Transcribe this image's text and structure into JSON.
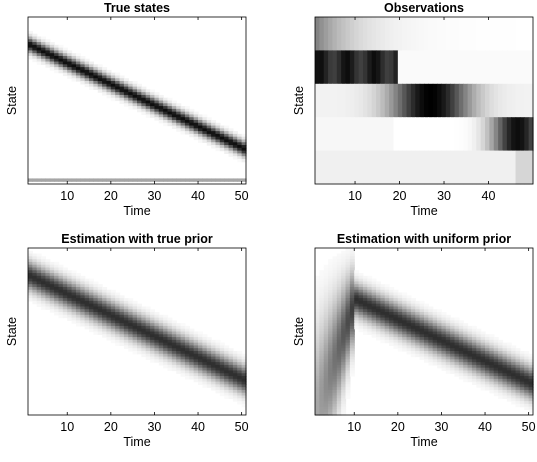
{
  "chart_data": [
    {
      "type": "heatmap",
      "title": "True states",
      "xlabel": "Time",
      "ylabel": "State",
      "xlim": [
        1,
        51
      ],
      "xticks": [
        10,
        20,
        30,
        40,
        50
      ],
      "ramp": {
        "start_row": 0.16,
        "end_row": 0.78,
        "width": 0.05
      },
      "grid": false
    },
    {
      "type": "heatmap",
      "title": "Observations",
      "xlabel": "Time",
      "ylabel": "State",
      "xlim": [
        1,
        50
      ],
      "xticks": [
        10,
        20,
        30,
        40
      ],
      "bands": 5,
      "grid": false
    },
    {
      "type": "heatmap",
      "title": "Estimation with true prior",
      "xlabel": "Time",
      "ylabel": "State",
      "xlim": [
        1,
        51
      ],
      "xticks": [
        10,
        20,
        30,
        40,
        50
      ],
      "ramp": {
        "start_row": 0.16,
        "end_row": 0.78,
        "width": 0.08
      },
      "grid": false
    },
    {
      "type": "heatmap",
      "title": "Estimation with uniform prior",
      "xlabel": "Time",
      "ylabel": "State",
      "xlim": [
        1,
        51
      ],
      "xticks": [
        10,
        20,
        30,
        40,
        50
      ],
      "ramp": {
        "start_row": 0.3,
        "end_row": 0.8,
        "width": 0.09
      },
      "grid": false
    }
  ]
}
